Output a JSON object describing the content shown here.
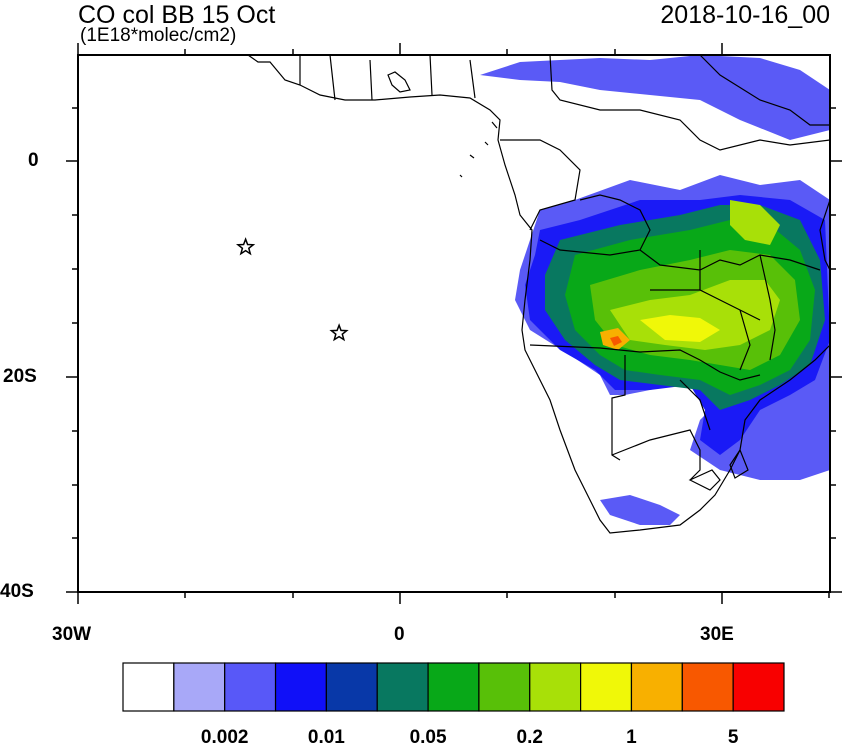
{
  "title": "CO col BB 15 Oct",
  "subtitle": "(1E18*molec/cm2)",
  "datetime": "2018-10-16_00",
  "map": {
    "lon_range": [
      -30,
      40
    ],
    "lat_range": [
      -40,
      10
    ],
    "lat_ticks": [
      "0",
      "20S",
      "40S"
    ],
    "lon_ticks": [
      "30W",
      "0",
      "30E"
    ],
    "markers": [
      {
        "type": "star",
        "lon": -14.4,
        "lat": -7.9
      },
      {
        "type": "star",
        "lon": -5.7,
        "lat": -15.9
      }
    ]
  },
  "colorbar": {
    "colors": [
      "#ffffff",
      "#a8a8f8",
      "#5858f8",
      "#1010f8",
      "#0838a8",
      "#087860",
      "#08a818",
      "#58c008",
      "#a8e008",
      "#f0f808",
      "#f8b000",
      "#f85800",
      "#f80000"
    ],
    "labels": [
      "0.002",
      "0.01",
      "0.05",
      "0.2",
      "1",
      "5"
    ]
  }
}
